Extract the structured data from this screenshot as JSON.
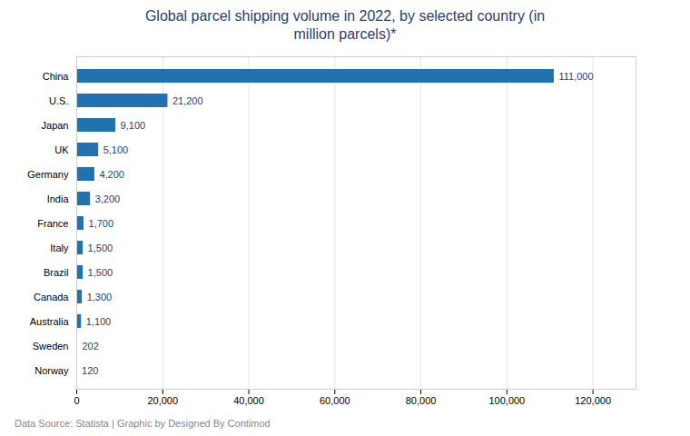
{
  "chart_data": {
    "type": "bar",
    "orientation": "horizontal",
    "title": "Global parcel shipping volume in 2022, by selected country (in\nmillion parcels)*",
    "caption": "Data Source: Statista | Graphic by Designed By Contimod",
    "categories": [
      "Norway",
      "Sweden",
      "Australia",
      "Canada",
      "Brazil",
      "Italy",
      "France",
      "India",
      "Germany",
      "UK",
      "Japan",
      "U.S.",
      "China"
    ],
    "values": [
      120,
      202,
      1100,
      1300,
      1500,
      1500,
      1700,
      3200,
      4200,
      5100,
      9100,
      21200,
      111000
    ],
    "value_labels": [
      "120",
      "202",
      "1,100",
      "1,300",
      "1,500",
      "1,500",
      "1,700",
      "3,200",
      "4,200",
      "5,100",
      "9,100",
      "21,200",
      "111,000"
    ],
    "data_labels": true,
    "color": "#2272b0",
    "xlim": [
      0,
      130000
    ],
    "xticks": [
      0,
      {
        "value": 20000,
        "label": "20,000"
      },
      {
        "value": 40000,
        "label": "40,000"
      },
      {
        "value": 60000,
        "label": "60,000"
      },
      {
        "value": 80000,
        "label": "80,000"
      },
      {
        "value": 100000,
        "label": "100,000"
      },
      {
        "value": 120000,
        "label": "120,000"
      }
    ],
    "grid": true
  }
}
